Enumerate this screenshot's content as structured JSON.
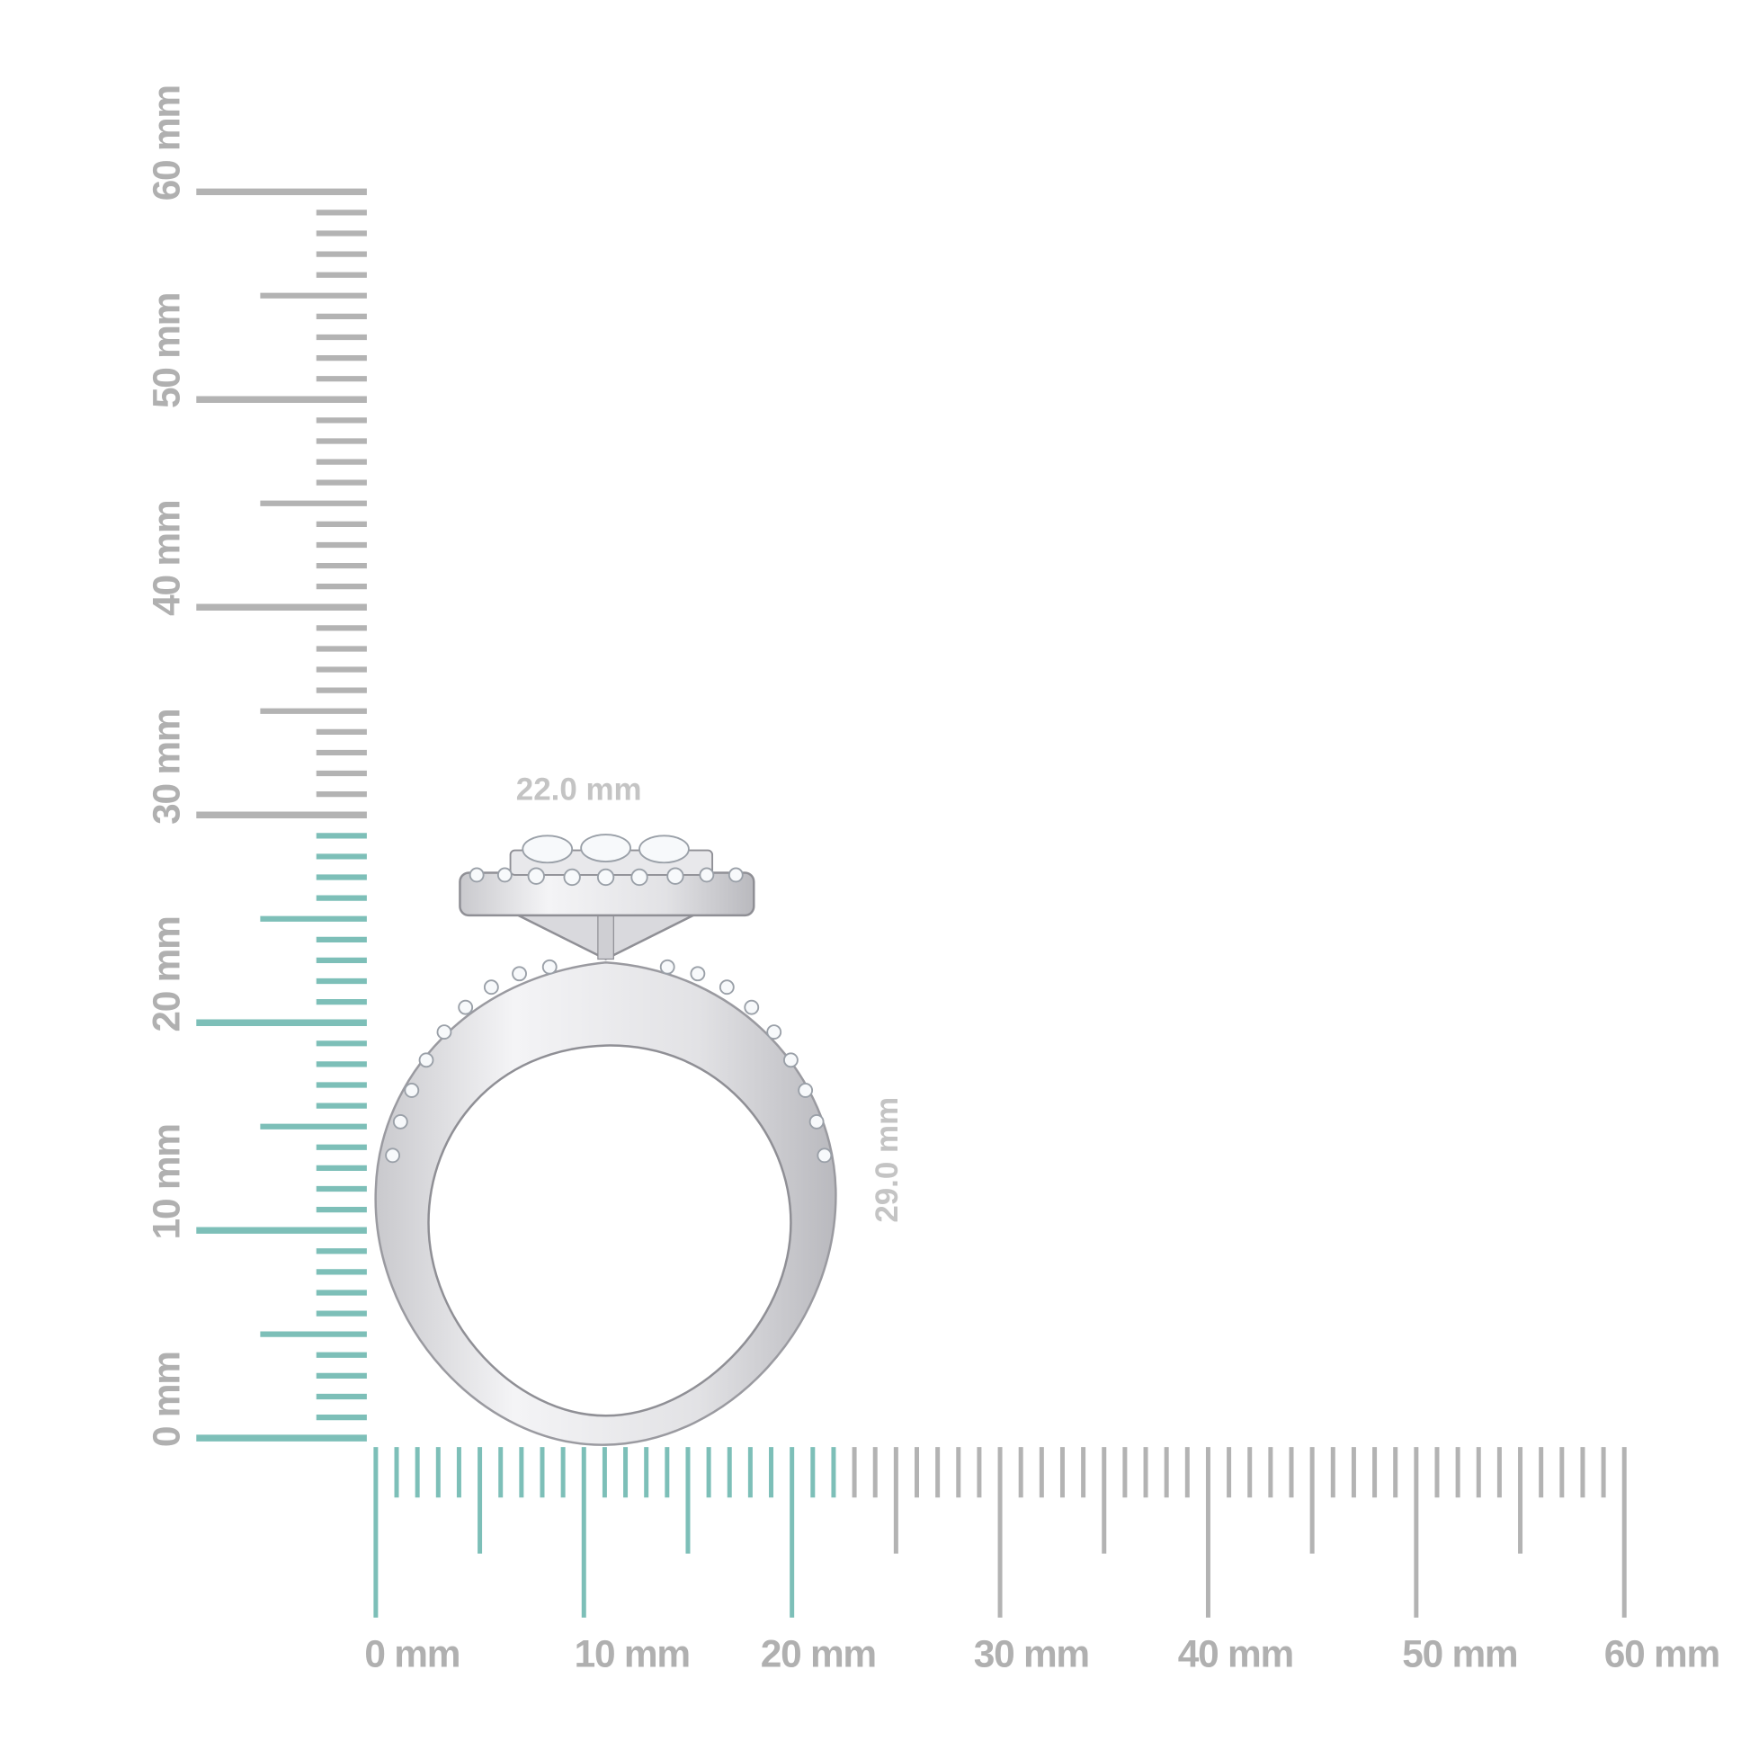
{
  "rulers": {
    "unit": "mm",
    "vertical_labels": [
      "0 mm",
      "10 mm",
      "20 mm",
      "30 mm",
      "40 mm",
      "50 mm",
      "60 mm"
    ],
    "horizontal_labels": [
      "0 mm",
      "10 mm",
      "20 mm",
      "30 mm",
      "40 mm",
      "50 mm",
      "60 mm"
    ],
    "range_mm": [
      0,
      60
    ],
    "highlight_vertical_mm": 29,
    "highlight_horizontal_mm": 22,
    "highlight_color": "#7dbfb8",
    "tick_color": "#b3b3b3"
  },
  "dimensions": {
    "width": "22.0 mm",
    "height": "29.0 mm"
  },
  "product": {
    "type": "ring-icon",
    "metal_color": "#e6e6e9"
  }
}
